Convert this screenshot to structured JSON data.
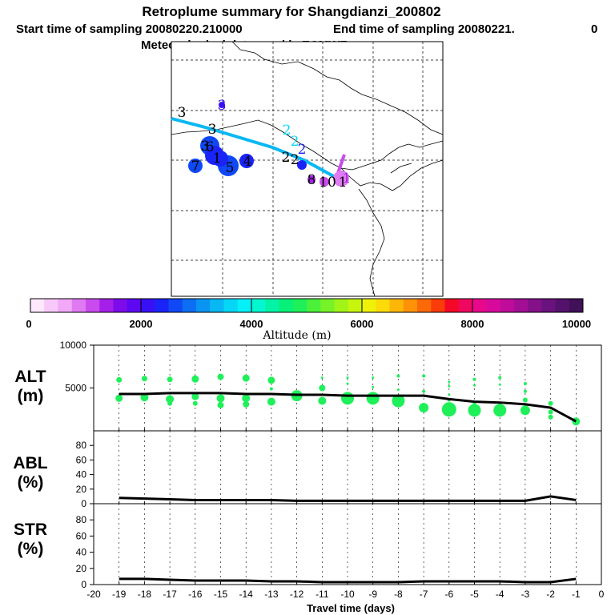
{
  "title": "Retroplume summary for Shangdianzi_200802",
  "subtitle_start": "Start time of sampling 20080220.210000",
  "subtitle_end": "End time of sampling 20080221.",
  "subtitle_end_val": "0",
  "subtitle_met": "Meteorological data used is ECMWF",
  "colorbar": {
    "label": "Altitude (m)",
    "tick_labels": [
      "0",
      "2000",
      "4000",
      "6000",
      "8000",
      "10000"
    ],
    "colors": [
      "#fde8fd",
      "#f8c8fa",
      "#f0a8f7",
      "#e07af3",
      "#c94bee",
      "#a41fe8",
      "#7d0bea",
      "#5d08f0",
      "#3910f5",
      "#1a24f7",
      "#1048f5",
      "#0c6ef3",
      "#0a94f2",
      "#08b8f3",
      "#06d6f5",
      "#05f0f7",
      "#05f7d2",
      "#05f3a6",
      "#07f07a",
      "#1ff05a",
      "#4af03a",
      "#76f226",
      "#a0f417",
      "#c8f50c",
      "#eef208",
      "#fcdb08",
      "#fdb608",
      "#fd9208",
      "#fc6a08",
      "#fa3c08",
      "#f40828",
      "#ee0860",
      "#e8088c",
      "#d80a9c",
      "#c00c9a",
      "#a20e94",
      "#84108a",
      "#6a127e",
      "#54126e",
      "#401058"
    ]
  },
  "map": {
    "labels": [
      {
        "text": "3",
        "color": "#000000"
      },
      {
        "text": "3",
        "color": "#3910f5"
      },
      {
        "text": "3",
        "color": "#000000"
      },
      {
        "text": "2",
        "color": "#06d6f5"
      },
      {
        "text": "2",
        "color": "#06d6f5"
      },
      {
        "text": "2",
        "color": "#1a24f7"
      },
      {
        "text": "2",
        "color": "#000000"
      },
      {
        "text": "2",
        "color": "#000000"
      },
      {
        "text": "3",
        "color": "#000000"
      },
      {
        "text": "1",
        "color": "#000000"
      },
      {
        "text": "5",
        "color": "#000000"
      },
      {
        "text": "6",
        "color": "#000000"
      },
      {
        "text": "7",
        "color": "#000000"
      },
      {
        "text": "4",
        "color": "#000000"
      },
      {
        "text": "8",
        "color": "#000000"
      },
      {
        "text": "10",
        "color": "#000000"
      },
      {
        "text": "1",
        "color": "#000000"
      },
      {
        "text": "1",
        "color": "#a41fe8"
      }
    ]
  },
  "chart_data": [
    {
      "type": "line",
      "panel": "ALT",
      "ylabel_line1": "ALT",
      "ylabel_line2": "(m)",
      "ylim": [
        0,
        10000
      ],
      "yticks": [
        5000,
        10000
      ],
      "xlim": [
        -20,
        0
      ],
      "x": [
        -19,
        -18,
        -17,
        -16,
        -15,
        -14,
        -13,
        -12,
        -11,
        -10,
        -9,
        -8,
        -7,
        -6,
        -5,
        -4,
        -3,
        -2,
        -1
      ],
      "values": [
        4300,
        4300,
        4400,
        4400,
        4400,
        4300,
        4300,
        4200,
        4200,
        4100,
        4100,
        4100,
        4100,
        3700,
        3400,
        3300,
        3100,
        2700,
        1100
      ],
      "scatter": [
        {
          "x": -19,
          "y": 5950,
          "r": 3.5
        },
        {
          "x": -19,
          "y": 3800,
          "r": 4.5
        },
        {
          "x": -18,
          "y": 6100,
          "r": 3.5
        },
        {
          "x": -18,
          "y": 3900,
          "r": 5
        },
        {
          "x": -17,
          "y": 6000,
          "r": 3.5
        },
        {
          "x": -17,
          "y": 3700,
          "r": 5
        },
        {
          "x": -17,
          "y": 3200,
          "r": 3
        },
        {
          "x": -16,
          "y": 6050,
          "r": 4.5
        },
        {
          "x": -16,
          "y": 4000,
          "r": 4.5
        },
        {
          "x": -16,
          "y": 3200,
          "r": 3
        },
        {
          "x": -15,
          "y": 6300,
          "r": 4
        },
        {
          "x": -15,
          "y": 3800,
          "r": 5
        },
        {
          "x": -15,
          "y": 3000,
          "r": 4
        },
        {
          "x": -14,
          "y": 6150,
          "r": 4.5
        },
        {
          "x": -14,
          "y": 3800,
          "r": 5
        },
        {
          "x": -14,
          "y": 3100,
          "r": 4
        },
        {
          "x": -13,
          "y": 5900,
          "r": 4.5
        },
        {
          "x": -13,
          "y": 4900,
          "r": 2
        },
        {
          "x": -13,
          "y": 3400,
          "r": 5
        },
        {
          "x": -12,
          "y": 4100,
          "r": 7
        },
        {
          "x": -11,
          "y": 6200,
          "r": 1.5
        },
        {
          "x": -11,
          "y": 5000,
          "r": 4
        },
        {
          "x": -11,
          "y": 3500,
          "r": 5
        },
        {
          "x": -10,
          "y": 6200,
          "r": 1.5
        },
        {
          "x": -10,
          "y": 5500,
          "r": 1.5
        },
        {
          "x": -10,
          "y": 3800,
          "r": 8
        },
        {
          "x": -9,
          "y": 6200,
          "r": 1.5
        },
        {
          "x": -9,
          "y": 5100,
          "r": 1.5
        },
        {
          "x": -9,
          "y": 3800,
          "r": 8
        },
        {
          "x": -8,
          "y": 6400,
          "r": 2
        },
        {
          "x": -8,
          "y": 4800,
          "r": 1.5
        },
        {
          "x": -8,
          "y": 3500,
          "r": 8
        },
        {
          "x": -7,
          "y": 6400,
          "r": 2
        },
        {
          "x": -7,
          "y": 4600,
          "r": 2
        },
        {
          "x": -7,
          "y": 2700,
          "r": 6
        },
        {
          "x": -6,
          "y": 5700,
          "r": 1.5
        },
        {
          "x": -6,
          "y": 5200,
          "r": 1.5
        },
        {
          "x": -6,
          "y": 4200,
          "r": 1.5
        },
        {
          "x": -6,
          "y": 3600,
          "r": 2
        },
        {
          "x": -6,
          "y": 2500,
          "r": 9
        },
        {
          "x": -5,
          "y": 6000,
          "r": 2
        },
        {
          "x": -5,
          "y": 5300,
          "r": 1.5
        },
        {
          "x": -5,
          "y": 3200,
          "r": 2
        },
        {
          "x": -5,
          "y": 2400,
          "r": 8
        },
        {
          "x": -4,
          "y": 6200,
          "r": 2
        },
        {
          "x": -4,
          "y": 5400,
          "r": 1.5
        },
        {
          "x": -4,
          "y": 2400,
          "r": 8
        },
        {
          "x": -3,
          "y": 5500,
          "r": 2
        },
        {
          "x": -3,
          "y": 4600,
          "r": 2
        },
        {
          "x": -3,
          "y": 3600,
          "r": 3
        },
        {
          "x": -3,
          "y": 2400,
          "r": 6
        },
        {
          "x": -2,
          "y": 3200,
          "r": 3
        },
        {
          "x": -2,
          "y": 2200,
          "r": 3
        },
        {
          "x": -2,
          "y": 1600,
          "r": 3
        },
        {
          "x": -1,
          "y": 1100,
          "r": 5
        }
      ]
    },
    {
      "type": "line",
      "panel": "ABL",
      "ylabel_line1": "ABL",
      "ylabel_line2": "(%)",
      "ylim": [
        0,
        100
      ],
      "yticks": [
        0,
        20,
        40,
        60,
        80
      ],
      "xlim": [
        -20,
        0
      ],
      "x": [
        -19,
        -18,
        -17,
        -16,
        -15,
        -14,
        -13,
        -12,
        -11,
        -10,
        -9,
        -8,
        -7,
        -6,
        -5,
        -4,
        -3,
        -2,
        -1
      ],
      "values": [
        8,
        7,
        6,
        5,
        5,
        5,
        5,
        4,
        4,
        4,
        4,
        4,
        4,
        4,
        4,
        4,
        4,
        10,
        5
      ]
    },
    {
      "type": "line",
      "panel": "STR",
      "ylabel_line1": "STR",
      "ylabel_line2": "(%)",
      "ylim": [
        0,
        100
      ],
      "yticks": [
        0,
        20,
        40,
        60,
        80
      ],
      "xlim": [
        -20,
        0
      ],
      "x": [
        -19,
        -18,
        -17,
        -16,
        -15,
        -14,
        -13,
        -12,
        -11,
        -10,
        -9,
        -8,
        -7,
        -6,
        -5,
        -4,
        -3,
        -2,
        -1
      ],
      "values": [
        7,
        7,
        6,
        5,
        5,
        5,
        4,
        4,
        3,
        3,
        3,
        3,
        4,
        4,
        4,
        4,
        3,
        3,
        7
      ],
      "xlabel": "Travel time (days)",
      "xtick_labels": [
        "-20",
        "-19",
        "-18",
        "-17",
        "-16",
        "-15",
        "-14",
        "-13",
        "-12",
        "-11",
        "-10",
        "-9",
        "-8",
        "-7",
        "-6",
        "-5",
        "-4",
        "-3",
        "-2",
        "-1",
        "0"
      ]
    }
  ]
}
